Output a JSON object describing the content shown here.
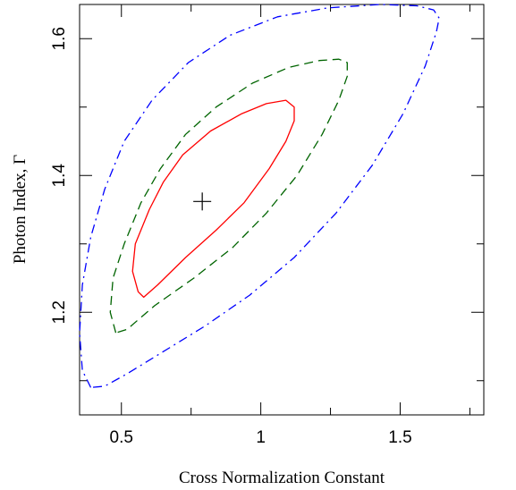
{
  "chart_data": {
    "type": "line",
    "subtype": "confidence-contour",
    "xlabel": "Cross Normalization Constant",
    "ylabel": "Photon Index, Γ",
    "xlim": [
      0.35,
      1.8
    ],
    "ylim": [
      1.05,
      1.65
    ],
    "x_ticks": [
      0.5,
      1,
      1.5
    ],
    "x_tick_labels": [
      "0.5",
      "1",
      "1.5"
    ],
    "x_minor_ticks": [
      0.5,
      0.75,
      1,
      1.25,
      1.5,
      1.75
    ],
    "y_ticks": [
      1.2,
      1.4,
      1.6
    ],
    "y_tick_labels": [
      "1.2",
      "1.4",
      "1.6"
    ],
    "y_minor_ticks": [
      1.1,
      1.2,
      1.3,
      1.4,
      1.5,
      1.6
    ],
    "grid": false,
    "best_fit": {
      "x": 0.79,
      "y": 1.362,
      "marker": "plus",
      "color": "#000000"
    },
    "series": [
      {
        "style": "solid",
        "color": "#ff0000",
        "points": [
          [
            0.56,
            1.23
          ],
          [
            0.54,
            1.26
          ],
          [
            0.55,
            1.3
          ],
          [
            0.6,
            1.35
          ],
          [
            0.65,
            1.39
          ],
          [
            0.72,
            1.43
          ],
          [
            0.82,
            1.465
          ],
          [
            0.93,
            1.49
          ],
          [
            1.02,
            1.505
          ],
          [
            1.09,
            1.51
          ],
          [
            1.12,
            1.5
          ],
          [
            1.12,
            1.48
          ],
          [
            1.09,
            1.45
          ],
          [
            1.03,
            1.41
          ],
          [
            0.94,
            1.36
          ],
          [
            0.84,
            1.32
          ],
          [
            0.73,
            1.28
          ],
          [
            0.63,
            1.24
          ],
          [
            0.58,
            1.222
          ],
          [
            0.56,
            1.23
          ]
        ]
      },
      {
        "style": "dashed",
        "color": "#006400",
        "points": [
          [
            0.48,
            1.17
          ],
          [
            0.46,
            1.2
          ],
          [
            0.47,
            1.25
          ],
          [
            0.51,
            1.3
          ],
          [
            0.57,
            1.36
          ],
          [
            0.64,
            1.41
          ],
          [
            0.73,
            1.46
          ],
          [
            0.84,
            1.5
          ],
          [
            0.97,
            1.535
          ],
          [
            1.1,
            1.558
          ],
          [
            1.21,
            1.568
          ],
          [
            1.28,
            1.57
          ],
          [
            1.31,
            1.565
          ],
          [
            1.31,
            1.545
          ],
          [
            1.28,
            1.51
          ],
          [
            1.22,
            1.46
          ],
          [
            1.13,
            1.4
          ],
          [
            1.02,
            1.345
          ],
          [
            0.9,
            1.295
          ],
          [
            0.76,
            1.25
          ],
          [
            0.62,
            1.21
          ],
          [
            0.52,
            1.175
          ],
          [
            0.48,
            1.17
          ]
        ]
      },
      {
        "style": "dashdot",
        "color": "#0000ff",
        "points": [
          [
            0.39,
            1.09
          ],
          [
            0.36,
            1.115
          ],
          [
            0.35,
            1.17
          ],
          [
            0.36,
            1.24
          ],
          [
            0.39,
            1.31
          ],
          [
            0.44,
            1.38
          ],
          [
            0.51,
            1.45
          ],
          [
            0.61,
            1.51
          ],
          [
            0.74,
            1.565
          ],
          [
            0.89,
            1.605
          ],
          [
            1.06,
            1.632
          ],
          [
            1.24,
            1.645
          ],
          [
            1.43,
            1.65
          ],
          [
            1.56,
            1.648
          ],
          [
            1.62,
            1.642
          ],
          [
            1.64,
            1.63
          ],
          [
            1.63,
            1.61
          ],
          [
            1.59,
            1.56
          ],
          [
            1.51,
            1.49
          ],
          [
            1.4,
            1.415
          ],
          [
            1.27,
            1.345
          ],
          [
            1.12,
            1.28
          ],
          [
            0.96,
            1.225
          ],
          [
            0.8,
            1.18
          ],
          [
            0.64,
            1.14
          ],
          [
            0.52,
            1.11
          ],
          [
            0.44,
            1.092
          ],
          [
            0.39,
            1.09
          ]
        ]
      }
    ]
  }
}
